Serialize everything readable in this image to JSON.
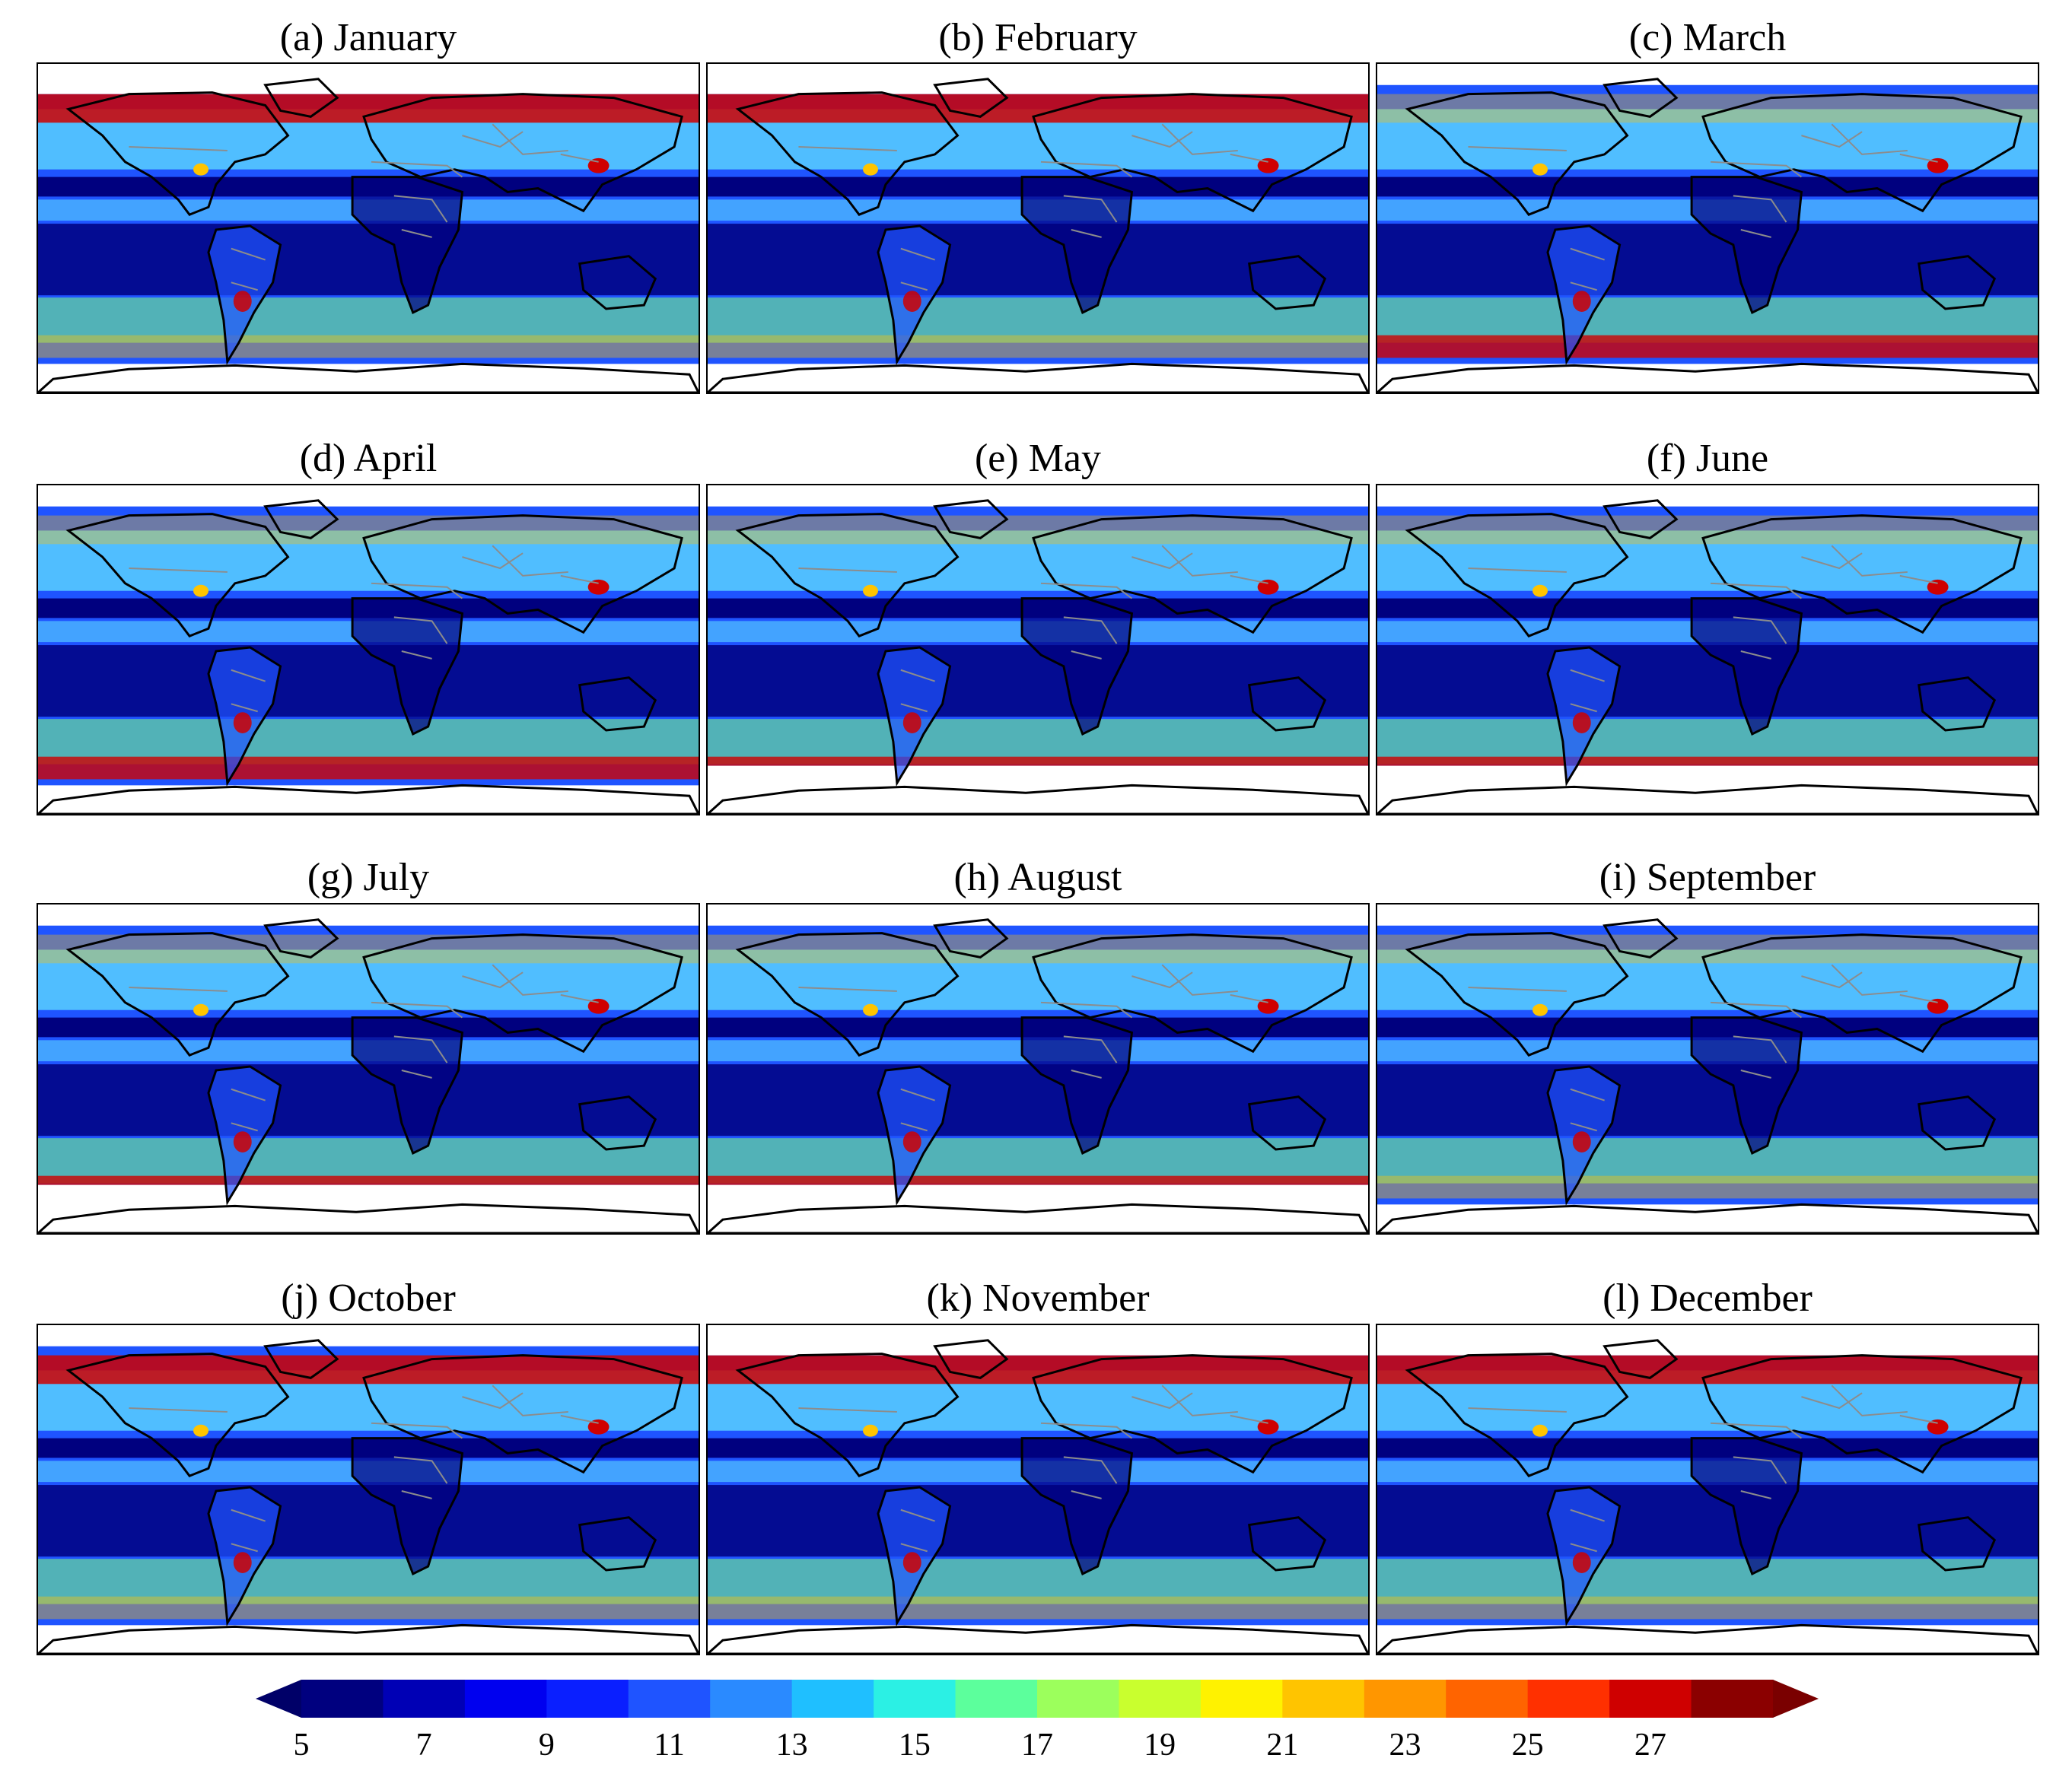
{
  "panels": [
    {
      "title": "(a) January"
    },
    {
      "title": "(b) February"
    },
    {
      "title": "(c) March"
    },
    {
      "title": "(d) April"
    },
    {
      "title": "(e) May"
    },
    {
      "title": "(f) June"
    },
    {
      "title": "(g) July"
    },
    {
      "title": "(h) August"
    },
    {
      "title": "(i) September"
    },
    {
      "title": "(j) October"
    },
    {
      "title": "(k) November"
    },
    {
      "title": "(l) December"
    }
  ],
  "colorbar": {
    "min": 5,
    "max": 29,
    "step": 1.5,
    "extend": "both",
    "tick_labels": [
      "5",
      "7",
      "9",
      "11",
      "13",
      "15",
      "17",
      "19",
      "21",
      "23",
      "25",
      "27"
    ],
    "colors": [
      "#00007f",
      "#0000b5",
      "#0000ef",
      "#0a1fff",
      "#1f54ff",
      "#2a8aff",
      "#1fbfff",
      "#2bf0e4",
      "#5cff9c",
      "#9cff5c",
      "#c9ff2e",
      "#fff200",
      "#ffc400",
      "#ff9600",
      "#ff6400",
      "#ff3000",
      "#cf0000",
      "#8b0000"
    ],
    "low_color": "#000068",
    "high_color": "#7a0000"
  },
  "map_colors": {
    "ocean_low": "#00007f",
    "ocean_mid": "#1f54ff",
    "ocean_high": "#5cd8ff",
    "green": "#7cff7c",
    "warm": "#ffc400",
    "hot": "#cf0000",
    "no_data": "#ffffff",
    "coast": "#000000",
    "borders": "#8c8c8c"
  }
}
